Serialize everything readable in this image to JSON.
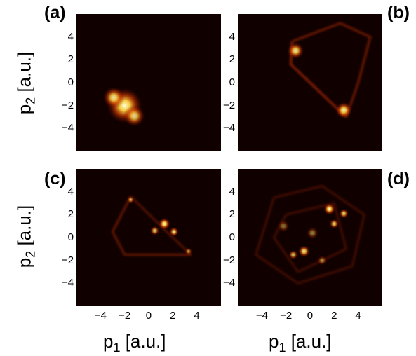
{
  "chart_data": {
    "type": "heatmap",
    "colormap": "hot",
    "axes": {
      "xlabel_main": "p",
      "xlabel_sub": "1",
      "xlabel_unit": " [a.u.]",
      "ylabel_main": "p",
      "ylabel_sub": "2",
      "ylabel_unit": " [a.u.]",
      "range": [
        -6,
        6
      ],
      "x_ticks": [
        "−4",
        "−2",
        "0",
        "2",
        "4"
      ],
      "y_ticks": [
        "4",
        "2",
        "0",
        "−2",
        "−4"
      ],
      "y_tick_values": [
        4,
        2,
        0,
        -2,
        -4
      ],
      "x_tick_values": [
        -4,
        -2,
        0,
        2,
        4
      ]
    },
    "panels": [
      {
        "label": "(a)",
        "blobs": [
          {
            "x": -2,
            "y": -2,
            "r": 1.5,
            "i": 1.0
          },
          {
            "x": -2.9,
            "y": -1.3,
            "r": 0.9,
            "i": 0.9
          },
          {
            "x": -1.2,
            "y": -2.9,
            "r": 0.9,
            "i": 0.85
          }
        ],
        "arcs": []
      },
      {
        "label": "(b)",
        "blobs": [
          {
            "x": -1.2,
            "y": 2.8,
            "r": 0.7,
            "i": 0.9
          },
          {
            "x": 2.8,
            "y": -2.4,
            "r": 0.7,
            "i": 0.95
          }
        ],
        "arcs": [
          {
            "pts": [
              [
                -1.5,
                3.6
              ],
              [
                2.5,
                5.2
              ],
              [
                5.0,
                4.0
              ],
              [
                4.0,
                0.0
              ],
              [
                3.0,
                -3.0
              ]
            ],
            "i": 0.55
          },
          {
            "pts": [
              [
                -1.5,
                3.6
              ],
              [
                -1.6,
                1.6
              ],
              [
                0.0,
                0.0
              ],
              [
                1.8,
                -1.8
              ],
              [
                3.0,
                -3.0
              ]
            ],
            "i": 0.7
          }
        ]
      },
      {
        "label": "(c)",
        "blobs": [
          {
            "x": 1.3,
            "y": 1.2,
            "r": 0.5,
            "i": 1.0
          },
          {
            "x": 2.1,
            "y": 0.5,
            "r": 0.4,
            "i": 0.9
          },
          {
            "x": 0.5,
            "y": 0.6,
            "r": 0.4,
            "i": 0.8
          },
          {
            "x": -1.5,
            "y": 3.3,
            "r": 0.3,
            "i": 0.7
          },
          {
            "x": 3.3,
            "y": -1.2,
            "r": 0.3,
            "i": 0.6
          }
        ],
        "arcs": [
          {
            "pts": [
              [
                -1.5,
                3.6
              ],
              [
                -3.0,
                0.5
              ],
              [
                -2.0,
                -1.5
              ],
              [
                3.5,
                -1.5
              ]
            ],
            "i": 0.5
          },
          {
            "pts": [
              [
                -1.5,
                3.6
              ],
              [
                1.5,
                0.5
              ],
              [
                3.5,
                -1.5
              ]
            ],
            "i": 0.4
          }
        ]
      },
      {
        "label": "(d)",
        "blobs": [
          {
            "x": 1.6,
            "y": 2.5,
            "r": 0.5,
            "i": 1.0
          },
          {
            "x": 2.8,
            "y": 2.1,
            "r": 0.4,
            "i": 0.85
          },
          {
            "x": 2.0,
            "y": 1.2,
            "r": 0.4,
            "i": 0.85
          },
          {
            "x": -0.5,
            "y": -1.2,
            "r": 0.5,
            "i": 0.9
          },
          {
            "x": -1.4,
            "y": -1.5,
            "r": 0.4,
            "i": 0.75
          },
          {
            "x": 0.2,
            "y": 0.4,
            "r": 0.5,
            "i": 0.5
          },
          {
            "x": -2.2,
            "y": 1.0,
            "r": 0.5,
            "i": 0.45
          },
          {
            "x": 1.0,
            "y": -2.0,
            "r": 0.4,
            "i": 0.55
          }
        ],
        "arcs": [
          {
            "pts": [
              [
                -3.0,
                3.5
              ],
              [
                1.0,
                4.5
              ],
              [
                4.5,
                2.0
              ],
              [
                3.5,
                -2.5
              ],
              [
                -1.0,
                -4.0
              ],
              [
                -4.5,
                -1.5
              ],
              [
                -3.0,
                3.5
              ]
            ],
            "i": 0.3
          },
          {
            "pts": [
              [
                -2.0,
                2.0
              ],
              [
                2.0,
                3.0
              ],
              [
                3.0,
                -1.0
              ],
              [
                -1.0,
                -3.0
              ],
              [
                -3.0,
                0.0
              ],
              [
                -2.0,
                2.0
              ]
            ],
            "i": 0.3
          }
        ]
      }
    ]
  }
}
